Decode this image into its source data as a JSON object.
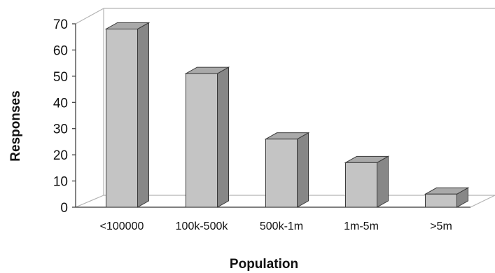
{
  "chart_data": {
    "type": "bar",
    "style": "3d",
    "title": "",
    "xlabel": "Population",
    "ylabel": "Responses",
    "categories": [
      "<100000",
      "100k-500k",
      "500k-1m",
      "1m-5m",
      ">5m"
    ],
    "series": [
      {
        "values": [
          68,
          51,
          26,
          17,
          5
        ]
      }
    ],
    "ylim": [
      0,
      70
    ],
    "yticks": [
      "0",
      "10",
      "20",
      "30",
      "40",
      "50",
      "60",
      "70"
    ],
    "grid": false,
    "legend": "none",
    "colors": {
      "bar_front": "#c4c4c4",
      "bar_top": "#a9a9a9",
      "bar_side": "#878787",
      "bar_edge": "#3a3a3a"
    }
  }
}
